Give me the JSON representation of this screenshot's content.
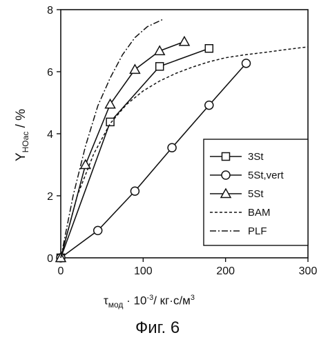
{
  "chart_data": {
    "type": "line",
    "xlabel_main": "τ",
    "xlabel_sub": "мод",
    "xlabel_rest_a": " · 10",
    "xlabel_exp": "-3",
    "xlabel_rest_b": "/ кг·с/м",
    "xlabel_exp2": "3",
    "ylabel_main": "Y",
    "ylabel_sub": "HOac",
    "ylabel_rest": " / %",
    "caption": "Фиг. 6",
    "xlim": [
      0,
      300
    ],
    "ylim": [
      0,
      8
    ],
    "xticks": [
      0,
      100,
      200,
      300
    ],
    "yticks": [
      0,
      2,
      4,
      6,
      8
    ],
    "legend_placement": "bottom-right",
    "series": [
      {
        "name": "3St",
        "marker": "square",
        "dash": "solid",
        "points": [
          [
            0,
            0
          ],
          [
            60,
            4.38
          ],
          [
            120,
            6.17
          ],
          [
            180,
            6.75
          ]
        ]
      },
      {
        "name": "5St,vert",
        "marker": "circle",
        "dash": "solid",
        "points": [
          [
            0,
            0
          ],
          [
            45,
            0.88
          ],
          [
            90,
            2.15
          ],
          [
            135,
            3.55
          ],
          [
            180,
            4.92
          ],
          [
            225,
            6.27
          ]
        ]
      },
      {
        "name": "5St",
        "marker": "triangle",
        "dash": "solid",
        "points": [
          [
            0,
            0
          ],
          [
            30,
            3.0
          ],
          [
            60,
            4.95
          ],
          [
            90,
            6.07
          ],
          [
            120,
            6.67
          ],
          [
            150,
            6.97
          ]
        ]
      },
      {
        "name": "BAM",
        "marker": "none",
        "dash": "dashed",
        "points": [
          [
            0,
            0
          ],
          [
            20,
            2.0
          ],
          [
            40,
            3.35
          ],
          [
            60,
            4.33
          ],
          [
            80,
            4.95
          ],
          [
            100,
            5.38
          ],
          [
            120,
            5.7
          ],
          [
            140,
            5.95
          ],
          [
            160,
            6.15
          ],
          [
            180,
            6.32
          ],
          [
            200,
            6.45
          ],
          [
            225,
            6.55
          ],
          [
            250,
            6.63
          ],
          [
            275,
            6.72
          ],
          [
            300,
            6.8
          ]
        ]
      },
      {
        "name": "PLF",
        "marker": "none",
        "dash": "dashdot",
        "points": [
          [
            0,
            0
          ],
          [
            15,
            2.0
          ],
          [
            30,
            3.6
          ],
          [
            45,
            4.9
          ],
          [
            60,
            5.8
          ],
          [
            75,
            6.55
          ],
          [
            90,
            7.1
          ],
          [
            105,
            7.45
          ],
          [
            125,
            7.7
          ]
        ]
      }
    ]
  }
}
